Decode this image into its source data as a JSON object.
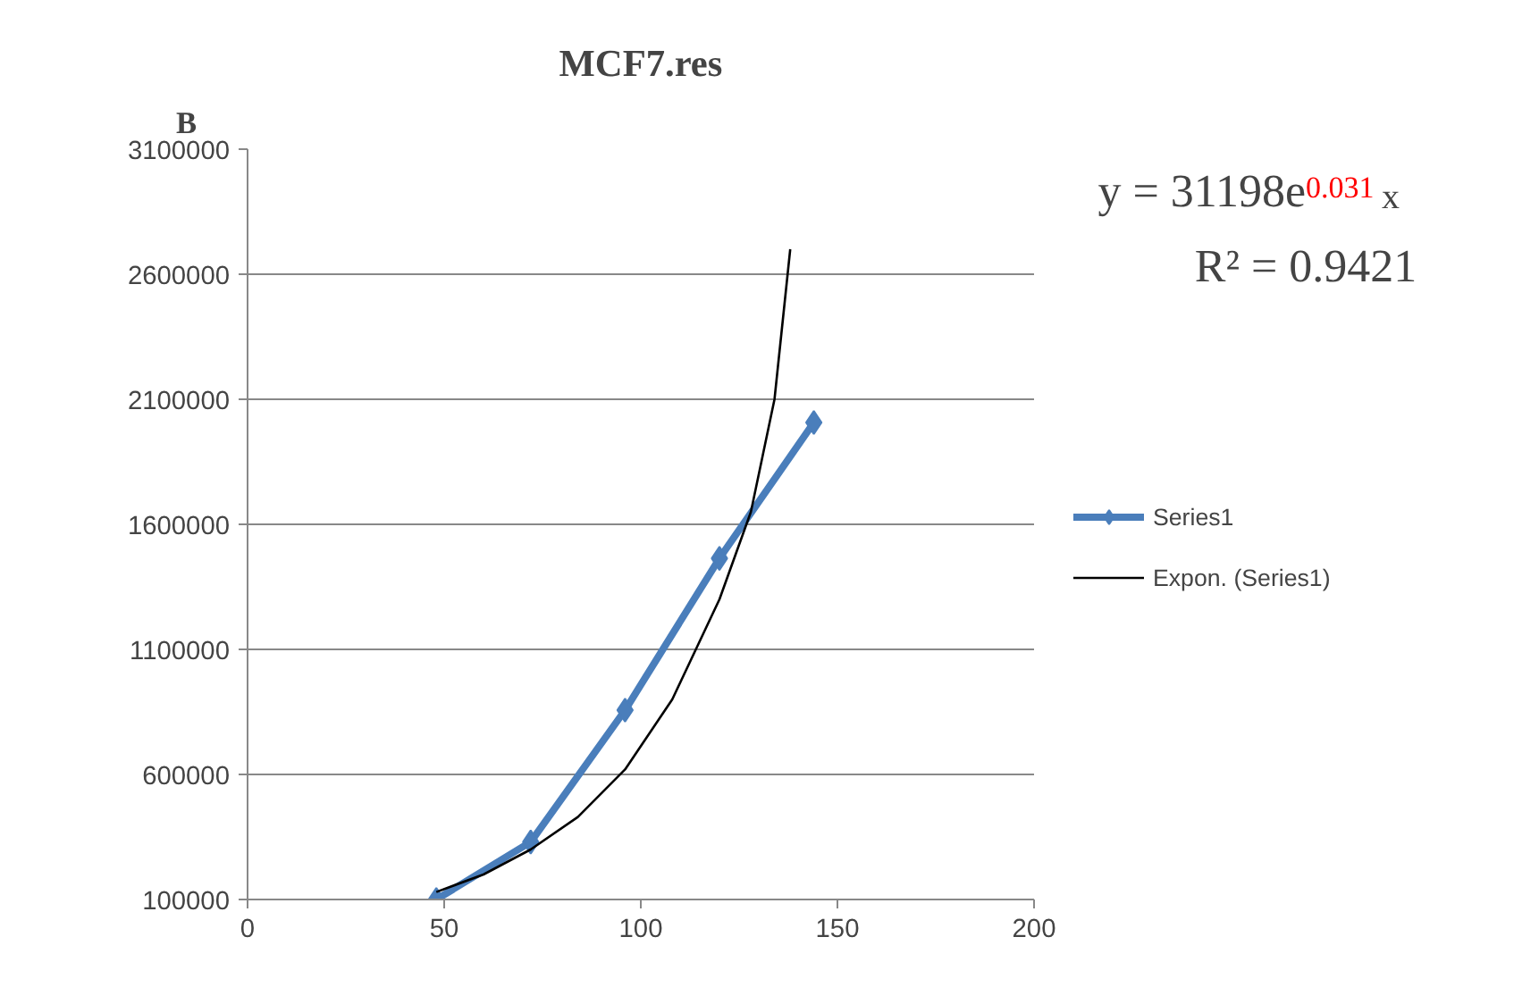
{
  "chart_data": {
    "type": "line",
    "title": "MCF7.res",
    "annotations": [
      "B",
      "y = 31198e$^{0.031}$x",
      "R² = 0.9421"
    ],
    "series": [
      {
        "name": "Series1",
        "color": "#4a7ebb",
        "x": [
          48,
          72,
          96,
          120,
          144
        ],
        "values": [
          100000,
          330000,
          857000,
          1464000,
          2007000
        ],
        "marker": "diamond"
      },
      {
        "name": "Expon. (Series1)",
        "color": "#000000",
        "x": [
          48,
          60,
          72,
          84,
          96,
          108,
          120,
          128,
          134,
          138
        ],
        "values": [
          130000,
          200000,
          300000,
          430000,
          620000,
          900000,
          1300000,
          1650000,
          2100000,
          2700000
        ],
        "marker": "none"
      }
    ],
    "xlim": [
      0,
      200
    ],
    "xticks": [
      0,
      50,
      100,
      150,
      200
    ],
    "ylim": [
      100000,
      3100000
    ],
    "yticks": [
      100000,
      600000,
      1100000,
      1600000,
      2100000,
      2600000,
      3100000
    ],
    "grid": "y",
    "legend": "right"
  }
}
